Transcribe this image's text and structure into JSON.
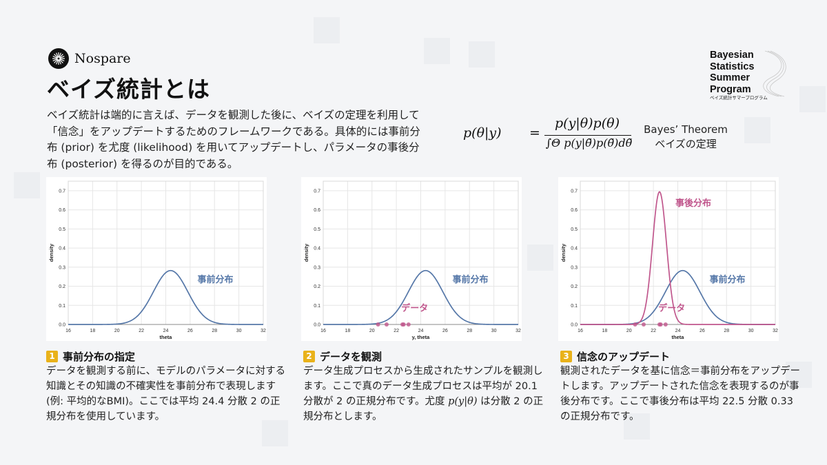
{
  "brand": {
    "name": "Nospare"
  },
  "title": "ベイズ統計とは",
  "intro": "ベイズ統計は端的に言えば、データを観測した後に、ベイズの定理を利用して「信念」をアップデートするためのフレームワークである。具体的には事前分布 (prior) を尤度 (likelihood) を用いてアップデートし、パラメータの事後分布 (posterior) を得るのが目的である。",
  "formula": {
    "lhs": "p(θ|y)",
    "eq": "=",
    "numerator": "p(y|θ)p(θ)",
    "denominator": "∫Θ p(y|θ̃)p(θ̃)dθ̃"
  },
  "theorem": {
    "en": "Bayes’ Theorem",
    "ja": "ベイズの定理"
  },
  "program": {
    "lines": [
      "Bayesian",
      "Statistics",
      "Summer",
      "Program"
    ],
    "subtitle": "ベイズ統計サマープログラム"
  },
  "colors": {
    "prior": "#5577a8",
    "data": "#c0568c",
    "posterior": "#c0568c",
    "badge": "#e9b21a"
  },
  "chart_data": [
    {
      "type": "line",
      "xlabel": "theta",
      "ylabel": "density",
      "xlim": [
        16,
        32
      ],
      "ylim": [
        0,
        0.75
      ],
      "x_ticks": [
        16,
        18,
        20,
        22,
        24,
        26,
        28,
        30,
        32
      ],
      "y_ticks": [
        0.0,
        0.1,
        0.2,
        0.3,
        0.4,
        0.5,
        0.6,
        0.7
      ],
      "grid": true,
      "series": [
        {
          "name": "事前分布",
          "dist": "normal",
          "mean": 24.4,
          "variance": 2,
          "label_at": [
            26.6,
            0.22
          ]
        }
      ],
      "data_points": null
    },
    {
      "type": "line",
      "xlabel": "y, theta",
      "ylabel": "density",
      "xlim": [
        16,
        32
      ],
      "ylim": [
        0,
        0.75
      ],
      "x_ticks": [
        16,
        18,
        20,
        22,
        24,
        26,
        28,
        30,
        32
      ],
      "y_ticks": [
        0.0,
        0.1,
        0.2,
        0.3,
        0.4,
        0.5,
        0.6,
        0.7
      ],
      "grid": true,
      "series": [
        {
          "name": "事前分布",
          "dist": "normal",
          "mean": 24.4,
          "variance": 2,
          "label_at": [
            26.6,
            0.22
          ]
        }
      ],
      "data_points": {
        "name": "データ",
        "values": [
          20.5,
          21.2,
          22.5,
          22.6,
          23.0
        ],
        "label_at": [
          22.4,
          0.07
        ]
      }
    },
    {
      "type": "line",
      "xlabel": "theta",
      "ylabel": "density",
      "xlim": [
        16,
        32
      ],
      "ylim": [
        0,
        0.75
      ],
      "x_ticks": [
        16,
        18,
        20,
        22,
        24,
        26,
        28,
        30,
        32
      ],
      "y_ticks": [
        0.0,
        0.1,
        0.2,
        0.3,
        0.4,
        0.5,
        0.6,
        0.7
      ],
      "grid": true,
      "series": [
        {
          "name": "事前分布",
          "dist": "normal",
          "mean": 24.4,
          "variance": 2,
          "label_at": [
            26.6,
            0.22
          ]
        },
        {
          "name": "事後分布",
          "dist": "normal",
          "mean": 22.5,
          "variance": 0.33,
          "label_at": [
            23.8,
            0.62
          ]
        }
      ],
      "data_points": {
        "name": "データ",
        "values": [
          20.5,
          21.2,
          22.5,
          22.6,
          23.0
        ],
        "label_at": [
          22.4,
          0.07
        ]
      }
    }
  ],
  "panels": [
    {
      "step": "1",
      "title": "事前分布の指定",
      "text": "データを観測する前に、モデルのパラメータに対する知識とその知識の不確実性を事前分布で表現します (例: 平均的なBMI)。ここでは平均 24.4 分散 2 の正規分布を使用しています。"
    },
    {
      "step": "2",
      "title": "データを観測",
      "text": "データ生成プロセスから生成されたサンプルを観測します。ここで真のデータ生成プロセスは平均が 20.1 分散が 2 の正規分布です。尤度",
      "math": "p(y|θ)",
      "text_after": "は分散 2 の正規分布とします。"
    },
    {
      "step": "3",
      "title": "信念のアップデート",
      "text": "観測されたデータを基に信念＝事前分布をアップデートします。アップデートされた信念を表現するのが事後分布です。ここで事後分布は平均 22.5 分散 0.33 の正規分布です。"
    }
  ]
}
